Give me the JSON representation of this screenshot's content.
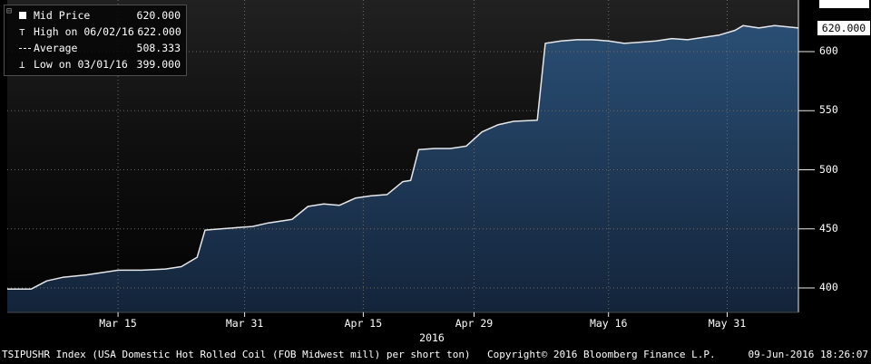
{
  "icons": {
    "panel_toggle": "⊟",
    "high_marker": "⊤",
    "low_marker": "⊥"
  },
  "colors": {
    "background": "#000000",
    "area_top": "#2a4e74",
    "area_bottom": "#13243a",
    "line": "#e8e8e8",
    "grid": "#6b6b6b",
    "axis": "#eaeaea",
    "text": "#ffffff",
    "last_price_bg": "#ffffff",
    "last_price_text": "#000000"
  },
  "legend": {
    "items": [
      {
        "icon": "mid-price-square-icon",
        "label": "Mid Price",
        "value": "620.000"
      },
      {
        "icon": "high-marker-icon",
        "label": "High on 06/02/16",
        "value": "622.000"
      },
      {
        "icon": "average-dash-icon",
        "label": "Average",
        "value": "508.333"
      },
      {
        "icon": "low-marker-icon",
        "label": "Low on 03/01/16",
        "value": "399.000"
      }
    ]
  },
  "axis": {
    "last_price_label": "620.000"
  },
  "footer": {
    "left": "TSIPUSHR Index (USA Domestic Hot Rolled Coil (FOB Midwest mill) per short ton)",
    "center": "Copyright© 2016 Bloomberg Finance L.P.",
    "right": "09-Jun-2016 18:26:07"
  },
  "chart_data": {
    "type": "area",
    "title": "TSIPUSHR Index (USA Domestic Hot Rolled Coil (FOB Midwest mill) per short ton)",
    "series_name": "Mid Price",
    "x_unit": "days since 01-Mar-2016",
    "x_range": [
      0,
      100
    ],
    "ylim": [
      379,
      644
    ],
    "y_ticks": [
      400,
      450,
      500,
      550,
      600
    ],
    "x_ticks": [
      {
        "x": 14,
        "label": "Mar 15"
      },
      {
        "x": 30,
        "label": "Mar 31"
      },
      {
        "x": 45,
        "label": "Apr 15"
      },
      {
        "x": 59,
        "label": "Apr 29"
      },
      {
        "x": 76,
        "label": "May 16"
      },
      {
        "x": 91,
        "label": "May 31"
      }
    ],
    "year_label": "2016",
    "last_price": 620.0,
    "high": {
      "date": "06/02/16",
      "value": 622.0
    },
    "low": {
      "date": "03/01/16",
      "value": 399.0
    },
    "average": 508.333,
    "grid": true,
    "legend_position": "top-left",
    "points": [
      [
        0,
        399
      ],
      [
        3,
        399
      ],
      [
        5,
        406
      ],
      [
        7,
        409
      ],
      [
        10,
        411
      ],
      [
        12,
        413
      ],
      [
        14,
        415
      ],
      [
        17,
        415
      ],
      [
        20,
        416
      ],
      [
        22,
        418
      ],
      [
        24,
        426
      ],
      [
        25,
        449
      ],
      [
        27,
        450
      ],
      [
        29,
        451
      ],
      [
        31,
        452
      ],
      [
        33,
        455
      ],
      [
        35,
        457
      ],
      [
        36,
        458
      ],
      [
        38,
        469
      ],
      [
        40,
        471
      ],
      [
        42,
        470
      ],
      [
        44,
        476
      ],
      [
        46,
        478
      ],
      [
        48,
        479
      ],
      [
        50,
        490
      ],
      [
        51,
        491
      ],
      [
        52,
        517
      ],
      [
        54,
        518
      ],
      [
        56,
        518
      ],
      [
        58,
        520
      ],
      [
        60,
        532
      ],
      [
        62,
        538
      ],
      [
        64,
        541
      ],
      [
        67,
        542
      ],
      [
        68,
        607
      ],
      [
        70,
        609
      ],
      [
        72,
        610
      ],
      [
        74,
        610
      ],
      [
        76,
        609
      ],
      [
        78,
        607
      ],
      [
        80,
        608
      ],
      [
        82,
        609
      ],
      [
        84,
        611
      ],
      [
        86,
        610
      ],
      [
        88,
        612
      ],
      [
        90,
        614
      ],
      [
        92,
        618
      ],
      [
        93,
        622
      ],
      [
        95,
        620
      ],
      [
        97,
        622
      ],
      [
        100,
        620
      ]
    ]
  }
}
